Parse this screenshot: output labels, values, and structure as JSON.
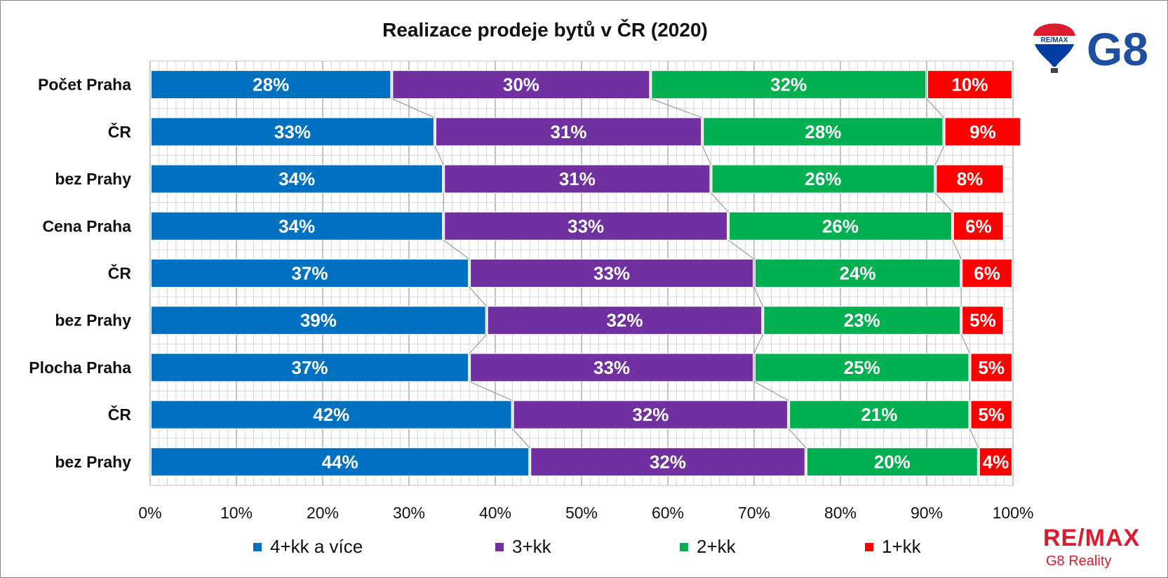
{
  "branding": {
    "balloon_text": "RE/MAX",
    "office_code": "G8",
    "bottom_brand": "RE/MAX",
    "bottom_subtitle": "G8 Reality"
  },
  "chart_data": {
    "type": "bar",
    "orientation": "horizontal",
    "stacked": true,
    "title": "Realizace prodeje bytů v ČR (2020)",
    "categories": [
      "Počet Praha",
      "ČR",
      "bez Prahy",
      "Cena Praha",
      "ČR",
      "bez Prahy",
      "Plocha Praha",
      "ČR",
      "bez Prahy"
    ],
    "series": [
      {
        "name": "4+kk a více",
        "color": "#0070C0",
        "values": [
          28,
          33,
          34,
          34,
          37,
          39,
          37,
          42,
          44
        ]
      },
      {
        "name": "3+kk",
        "color": "#7030A0",
        "values": [
          30,
          31,
          31,
          33,
          33,
          32,
          33,
          32,
          32
        ]
      },
      {
        "name": "2+kk",
        "color": "#00B050",
        "values": [
          32,
          28,
          26,
          26,
          24,
          23,
          25,
          21,
          20
        ]
      },
      {
        "name": "1+kk",
        "color": "#FF0000",
        "values": [
          10,
          9,
          8,
          6,
          6,
          5,
          5,
          5,
          4
        ]
      }
    ],
    "data_labels": [
      [
        "28%",
        "33%",
        "34%",
        "34%",
        "37%",
        "39%",
        "37%",
        "42%",
        "44%"
      ],
      [
        "30%",
        "31%",
        "31%",
        "33%",
        "33%",
        "32%",
        "33%",
        "32%",
        "32%"
      ],
      [
        "32%",
        "28%",
        "26%",
        "26%",
        "24%",
        "23%",
        "25%",
        "21%",
        "20%"
      ],
      [
        "10%",
        "9%",
        "8%",
        "6%",
        "6%",
        "5%",
        "5%",
        "5%",
        "4%"
      ]
    ],
    "x_ticks": [
      "0%",
      "10%",
      "20%",
      "30%",
      "40%",
      "50%",
      "60%",
      "70%",
      "80%",
      "90%",
      "100%"
    ],
    "xlim": [
      0,
      100
    ],
    "grid": true,
    "series_lines": true,
    "legend_position": "bottom"
  }
}
